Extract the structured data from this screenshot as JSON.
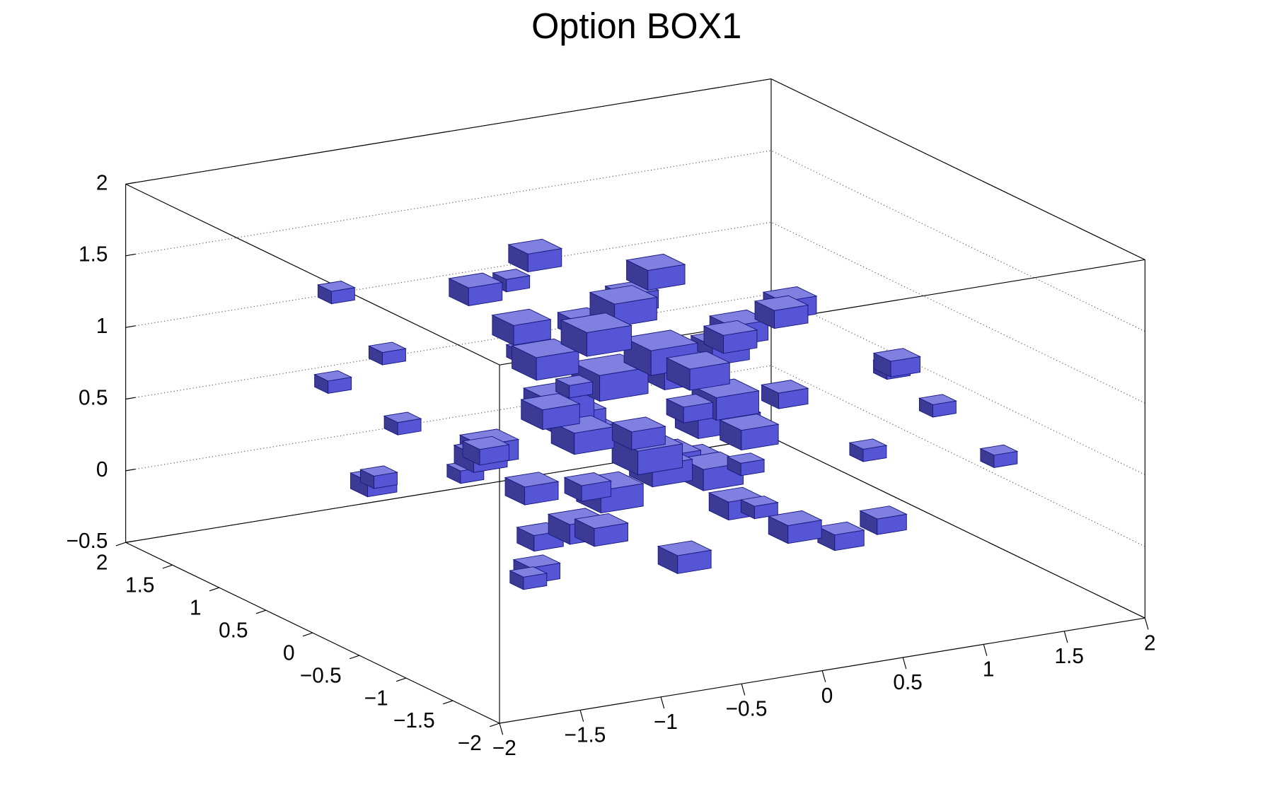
{
  "chart_data": {
    "type": "box3d",
    "title": "Option BOX1",
    "color": "#5555d5",
    "xlim": [
      -2,
      2
    ],
    "ylim": [
      -2,
      2
    ],
    "zlim": [
      -0.5,
      2
    ],
    "xticks": [
      {
        "value": -2,
        "label": "−2"
      },
      {
        "value": -1.5,
        "label": "−1.5"
      },
      {
        "value": -1,
        "label": "−1"
      },
      {
        "value": -0.5,
        "label": "−0.5"
      },
      0,
      0.5,
      1,
      1.5,
      2
    ],
    "yticks": [
      {
        "value": -2,
        "label": "−2"
      },
      {
        "value": -1.5,
        "label": "−1.5"
      },
      {
        "value": -1,
        "label": "−1"
      },
      {
        "value": -0.5,
        "label": "−0.5"
      },
      0,
      0.5,
      1,
      1.5,
      2
    ],
    "zticks": [
      {
        "value": -0.5,
        "label": "−0.5"
      },
      0,
      0.5,
      1,
      1.5,
      2
    ],
    "grid": true,
    "x": [
      -0.1,
      0.1,
      -0.3,
      0.3,
      -0.1,
      0.1,
      -0.5,
      0.5,
      -0.3,
      0.3,
      -0.1,
      0.1,
      -0.7,
      0.7,
      -0.3,
      0.3,
      -0.5,
      0.5,
      -0.9,
      0.9,
      -0.1,
      0.1,
      -0.7,
      0.7,
      -0.5,
      0.5,
      -1.1,
      1.1,
      -0.3,
      0.3,
      -1.3,
      1.3,
      -0.9,
      0.9,
      -1.5,
      1.5,
      0.1,
      -0.1,
      -1.1,
      1.1,
      -0.9,
      0.9,
      -0.1,
      0.1,
      -0.3,
      0.3,
      -0.5,
      0.5,
      -0.1,
      0.1,
      -0.7,
      0.7,
      -0.3,
      0.3,
      1.7,
      -1.7,
      0.3,
      -0.3,
      1.3,
      -1.3,
      1.5,
      -1.1,
      0.5,
      -0.5,
      0.9,
      -0.9,
      1.1,
      -0.3,
      0.7,
      -0.7
    ],
    "y": [
      0.1,
      -0.1,
      0.3,
      0.1,
      -0.3,
      0.3,
      0.1,
      -0.1,
      -0.1,
      -0.3,
      0.5,
      -0.5,
      -0.3,
      0.3,
      0.7,
      -0.7,
      -0.5,
      0.5,
      0.1,
      -0.1,
      0.9,
      -0.9,
      0.5,
      -0.5,
      0.7,
      -0.7,
      -0.3,
      0.3,
      -1.1,
      1.1,
      0.5,
      -0.5,
      -0.9,
      0.9,
      -0.1,
      0.1,
      1.5,
      -1.5,
      0.9,
      -0.9,
      1.1,
      -1.1,
      0.1,
      -0.1,
      0.1,
      0.3,
      -0.3,
      0.1,
      -0.7,
      0.7,
      -0.1,
      0.1,
      0.5,
      -0.5,
      -0.3,
      0.3,
      1.7,
      -1.7,
      1.1,
      -1.1,
      -1.3,
      1.3,
      0.9,
      -0.9,
      0.5,
      -0.5,
      -0.3,
      1.3,
      0.7,
      -0.7
    ],
    "z": [
      0.9,
      1.1,
      0.7,
      0.9,
      0.5,
      1.3,
      1.1,
      0.7,
      1.3,
      0.3,
      0.5,
      1.1,
      0.9,
      0.9,
      1.1,
      0.7,
      0.1,
      0.1,
      0.5,
      1.3,
      1.5,
      0.3,
      1.5,
      -0.1,
      0.3,
      1.5,
      0.7,
      0.5,
      1.1,
      0.9,
      0.3,
      0.9,
      1.3,
      -0.1,
      0.9,
      0.1,
      1.1,
      0.5,
      0.1,
      1.1,
      0.9,
      0.1,
      0.1,
      0.3,
      -0.1,
      1.5,
      0.7,
      0.5,
      -0.1,
      0.3,
      0.3,
      1.1,
      -0.3,
      1.3,
      0.5,
      1.1,
      0.5,
      0.9,
      0.7,
      0.1,
      0.5,
      1.3,
      1.1,
      0.9,
      0.3,
      -0.1,
      -0.3,
      -0.1,
      0.7,
      0.5
    ],
    "values": [
      9,
      8,
      7,
      8,
      7,
      6,
      6,
      6,
      7,
      5,
      6,
      5,
      4,
      4,
      4,
      4,
      3,
      5,
      3,
      3,
      3,
      3,
      3,
      3,
      4,
      3,
      2,
      2,
      2,
      2,
      1,
      1,
      1,
      2,
      1,
      1,
      1,
      1,
      2,
      2,
      1,
      2,
      6,
      5,
      4,
      4,
      5,
      5,
      3,
      4,
      3,
      4,
      2,
      3,
      1,
      1,
      1,
      1,
      1,
      1,
      1,
      1,
      3,
      3,
      3,
      2,
      2,
      1,
      3,
      2
    ]
  }
}
